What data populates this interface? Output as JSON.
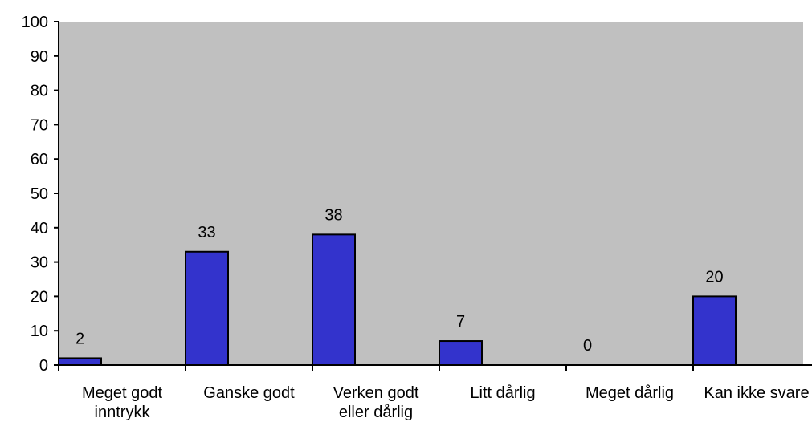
{
  "chart_data": {
    "type": "bar",
    "categories": [
      "Meget godt inntrykk",
      "Ganske godt",
      "Verken godt eller dårlig",
      "Litt dårlig",
      "Meget dårlig",
      "Kan ikke svare"
    ],
    "values": [
      2,
      33,
      38,
      7,
      0,
      20
    ],
    "color": "#3333cc",
    "ylim": [
      0,
      100
    ],
    "yticks": [
      0,
      10,
      20,
      30,
      40,
      50,
      60,
      70,
      80,
      90,
      100
    ],
    "grid": false
  }
}
